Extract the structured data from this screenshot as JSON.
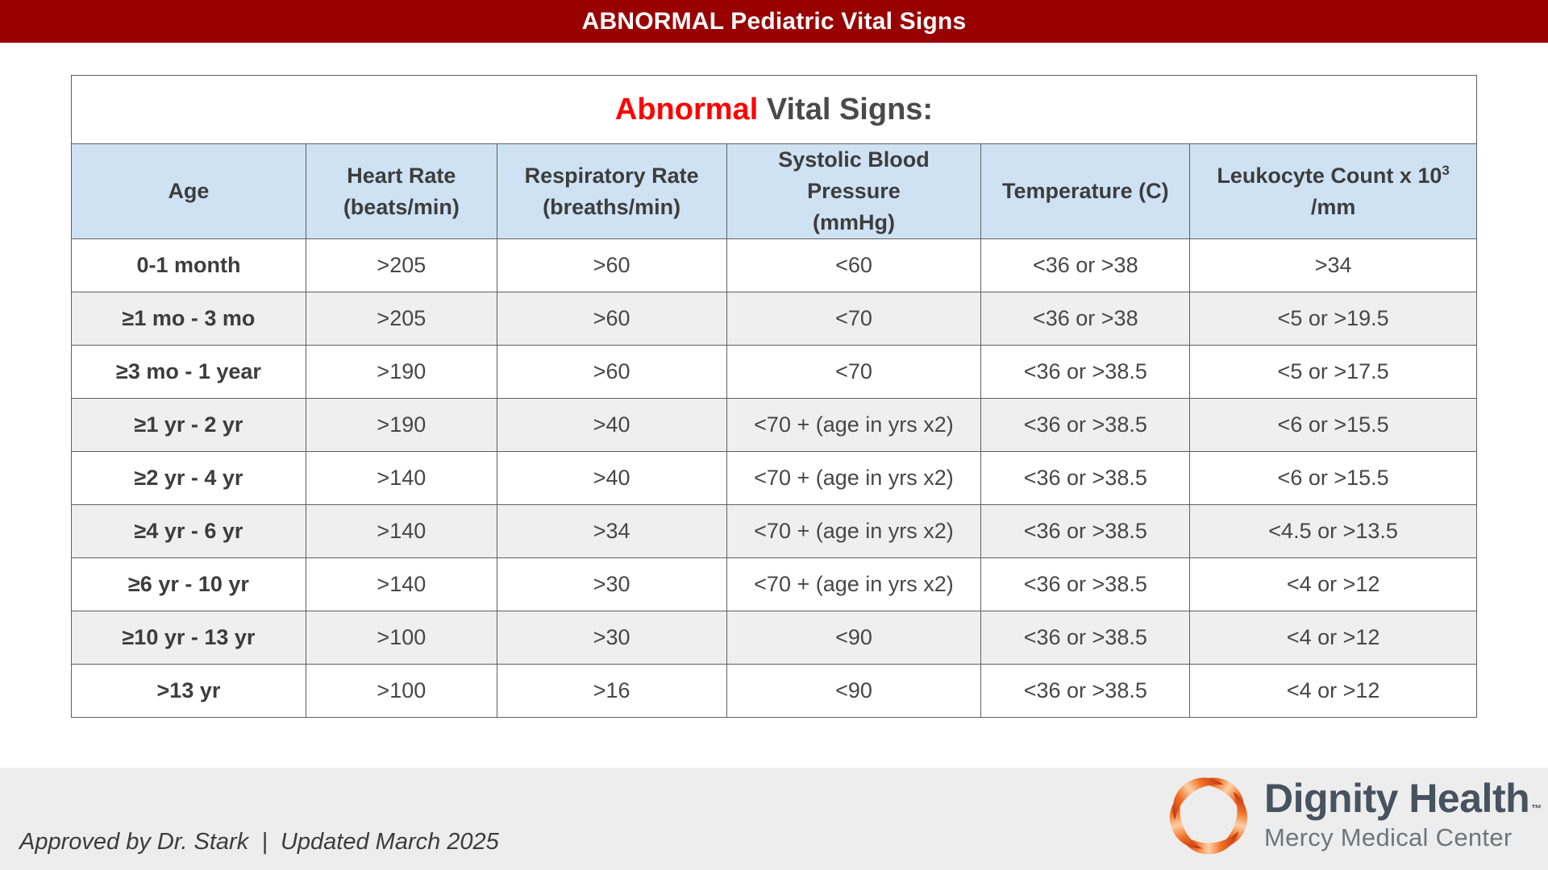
{
  "banner": {
    "title": "ABNORMAL Pediatric Vital Signs",
    "bg_color": "#990000"
  },
  "table": {
    "title_highlight": "Abnormal",
    "title_rest": "Vital Signs:",
    "title_highlight_color": "#fe0000",
    "header_bg_color": "#cfe2f3",
    "alt_row_color": "#efefef",
    "columns": [
      {
        "id": "age",
        "lines": [
          "Age"
        ]
      },
      {
        "id": "heart-rate",
        "lines": [
          "Heart Rate",
          "(beats/min)"
        ]
      },
      {
        "id": "respiratory-rate",
        "lines": [
          "Respiratory Rate",
          "(breaths/min)"
        ]
      },
      {
        "id": "systolic-blood-pressure",
        "lines": [
          "Systolic Blood Pressure",
          "(mmHg)"
        ]
      },
      {
        "id": "temperature",
        "lines": [
          "Temperature (C)"
        ]
      },
      {
        "id": "leukocyte-count",
        "lines": [
          [
            {
              "t": "Leukocyte Count x 10"
            },
            {
              "t": "3",
              "sup": true
            },
            {
              "t": " /mm"
            }
          ]
        ]
      }
    ],
    "rows": [
      [
        "0-1 month",
        ">205",
        ">60",
        "<60",
        "<36 or >38",
        ">34"
      ],
      [
        "≥1 mo - 3 mo",
        ">205",
        ">60",
        "<70",
        "<36 or >38",
        "<5 or >19.5"
      ],
      [
        "≥3 mo - 1 year",
        ">190",
        ">60",
        "<70",
        "<36 or >38.5",
        "<5 or >17.5"
      ],
      [
        "≥1 yr - 2 yr",
        ">190",
        ">40",
        "<70 + (age in yrs x2)",
        "<36 or >38.5",
        "<6 or >15.5"
      ],
      [
        "≥2 yr - 4 yr",
        ">140",
        ">40",
        "<70 + (age in yrs x2)",
        "<36 or >38.5",
        "<6 or >15.5"
      ],
      [
        "≥4 yr - 6 yr",
        ">140",
        ">34",
        "<70 + (age in yrs x2)",
        "<36 or >38.5",
        "<4.5 or >13.5"
      ],
      [
        "≥6 yr - 10 yr",
        ">140",
        ">30",
        "<70 + (age in yrs x2)",
        "<36 or >38.5",
        "<4 or >12"
      ],
      [
        "≥10 yr - 13 yr",
        ">100",
        ">30",
        "<90",
        "<36 or >38.5",
        "<4 or >12"
      ],
      [
        ">13 yr",
        ">100",
        ">16",
        "<90",
        "<36 or >38.5",
        "<4 or >12"
      ]
    ]
  },
  "footer": {
    "approval": "Approved by Dr. Stark  |  Updated March 2025",
    "logo": {
      "name": "Dignity Health",
      "tm": "™",
      "subtitle": "Mercy Medical Center",
      "petal_colors": [
        "#b93318",
        "#f26f21",
        "#fcd0a8"
      ]
    }
  }
}
